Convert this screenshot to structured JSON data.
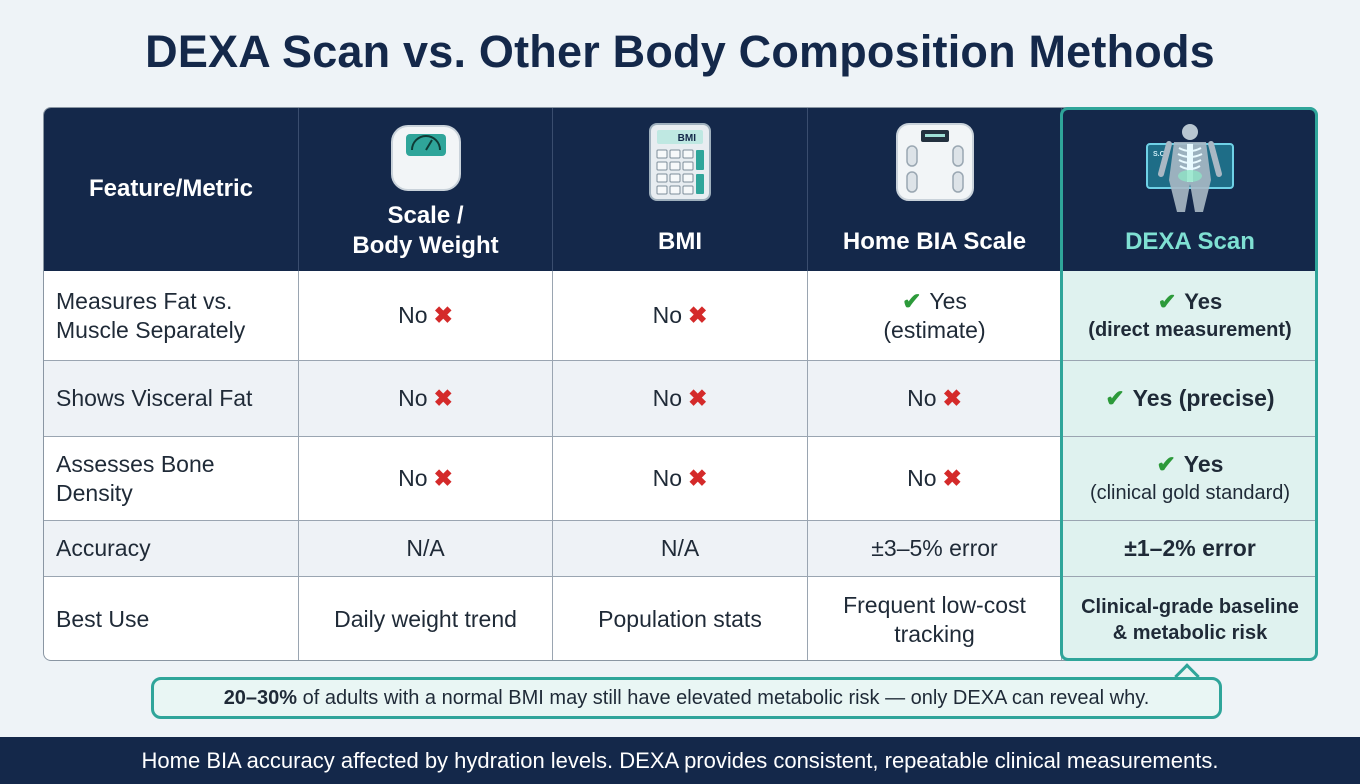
{
  "title": "DEXA Scan vs. Other Body Composition Methods",
  "colors": {
    "navy": "#14284a",
    "teal": "#2fa59a",
    "dexa_tint": "#dff2ef",
    "x_red": "#d42a2a",
    "check_green": "#2c9a3a"
  },
  "table": {
    "headers": {
      "feature": "Feature/Metric",
      "scale_line1": "Scale /",
      "scale_line2": "Body Weight",
      "bmi": "BMI",
      "bia": "Home BIA Scale",
      "dexa": "DEXA Scan"
    },
    "icons": {
      "scale": "bathroom-scale-icon",
      "bmi": "calculator-icon",
      "bia": "smart-scale-icon",
      "dexa": "body-xray-icon",
      "bmi_screen_text": "BMI",
      "dexa_screen_text": "S.C."
    },
    "rows": [
      {
        "feature_line1": "Measures Fat vs.",
        "feature_line2": "Muscle Separately",
        "scale": "No",
        "bmi": "No",
        "bia_line1": "Yes",
        "bia_line2": "(estimate)",
        "dexa_line1": "Yes",
        "dexa_line2": "(direct measurement)"
      },
      {
        "feature": "Shows Visceral Fat",
        "scale": "No",
        "bmi": "No",
        "bia": "No",
        "dexa": "Yes (precise)"
      },
      {
        "feature_line1": "Assesses Bone",
        "feature_line2": "Density",
        "scale": "No",
        "bmi": "No",
        "bia": "No",
        "dexa_line1": "Yes",
        "dexa_line2": "(clinical gold standard)"
      },
      {
        "feature": "Accuracy",
        "scale": "N/A",
        "bmi": "N/A",
        "bia": "±3–5% error",
        "dexa": "±1–2% error"
      },
      {
        "feature": "Best Use",
        "scale": "Daily weight trend",
        "bmi": "Population stats",
        "bia_line1": "Frequent low-cost",
        "bia_line2": "tracking",
        "dexa_line1": "Clinical-grade baseline",
        "dexa_line2": "& metabolic risk"
      }
    ],
    "x_glyph": "✖",
    "check_glyph": "✔"
  },
  "callout": {
    "bold": "20–30%",
    "rest": " of adults with a normal BMI may still have elevated metabolic risk — only DEXA can reveal why."
  },
  "footer": "Home BIA accuracy affected by hydration levels. DEXA provides consistent, repeatable clinical measurements."
}
